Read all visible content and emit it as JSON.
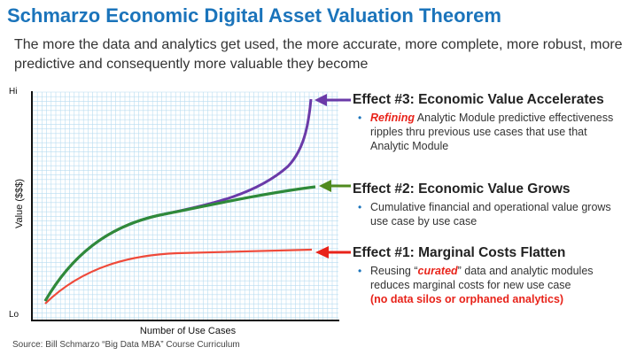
{
  "header": {
    "title": "Schmarzo Economic Digital Asset Valuation Theorem",
    "subtitle": "The more the data and analytics get used, the more accurate, more complete, more robust, more predictive and consequently more valuable they become"
  },
  "chart": {
    "y_label": "Value ($$$)",
    "y_hi": "Hi",
    "y_lo": "Lo",
    "x_label": "Number of Use Cases"
  },
  "effects": [
    {
      "title": "Effect #3: Economic Value Accelerates",
      "highlight": "Refining",
      "text": " Analytic Module predictive effectiveness ripples thru previous use cases that use that Analytic Module",
      "arrow_color": "#6a3aa8"
    },
    {
      "title": "Effect #2: Economic Value Grows",
      "text": "Cumulative financial and operational value grows use case by use case",
      "arrow_color": "#4f8a1e"
    },
    {
      "title": "Effect #1: Marginal Costs Flatten",
      "text_before": "Reusing “",
      "highlight": "curated",
      "text_after": "” data and analytic modules reduces marginal costs for new use case",
      "note": "(no data silos or orphaned analytics)",
      "arrow_color": "#e8231a"
    }
  ],
  "colors": {
    "title": "#1b74bb",
    "grid": "#b8dcf0",
    "value_accelerates": "#6a3aa8",
    "value_grows": "#2f8a3a",
    "marginal_costs": "#ef4a3a"
  },
  "source": "Source: Bill Schmarzo “Big Data MBA” Course Curriculum"
}
